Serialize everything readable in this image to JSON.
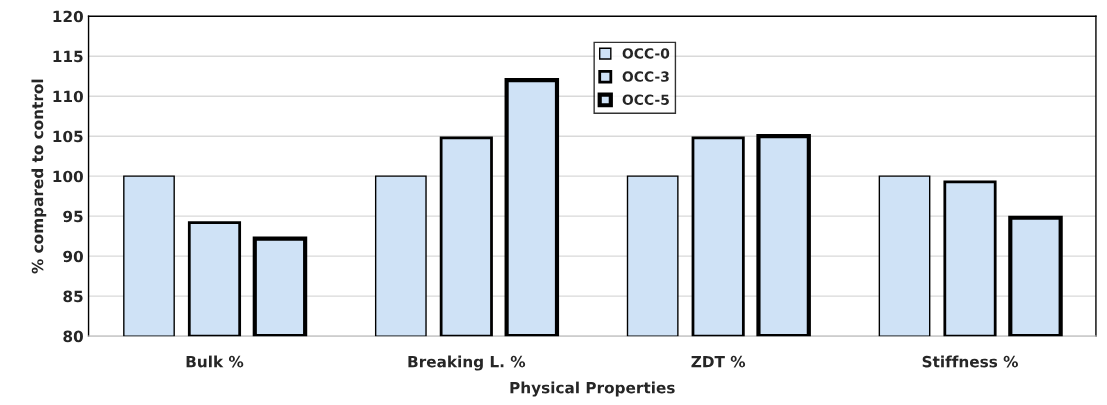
{
  "chart_data": {
    "type": "bar",
    "xlabel": "Physical Properties",
    "ylabel": "% compared to control",
    "categories": [
      "Bulk %",
      "Breaking L. %",
      "ZDT %",
      "Stiffness %"
    ],
    "series": [
      {
        "name": "OCC-0",
        "color": "#cfe2f6",
        "values": [
          100,
          100,
          100,
          100
        ]
      },
      {
        "name": "OCC-3",
        "color": "#cfe2f6",
        "values": [
          94.2,
          104.8,
          104.8,
          99.3
        ]
      },
      {
        "name": "OCC-5",
        "color": "#cfe2f6",
        "values": [
          92.2,
          112.0,
          105.0,
          94.8
        ]
      }
    ],
    "ylim": [
      80,
      120
    ],
    "yticks": [
      80,
      85,
      90,
      95,
      100,
      105,
      110,
      115,
      120
    ],
    "grid": "y",
    "legend": "top center"
  }
}
